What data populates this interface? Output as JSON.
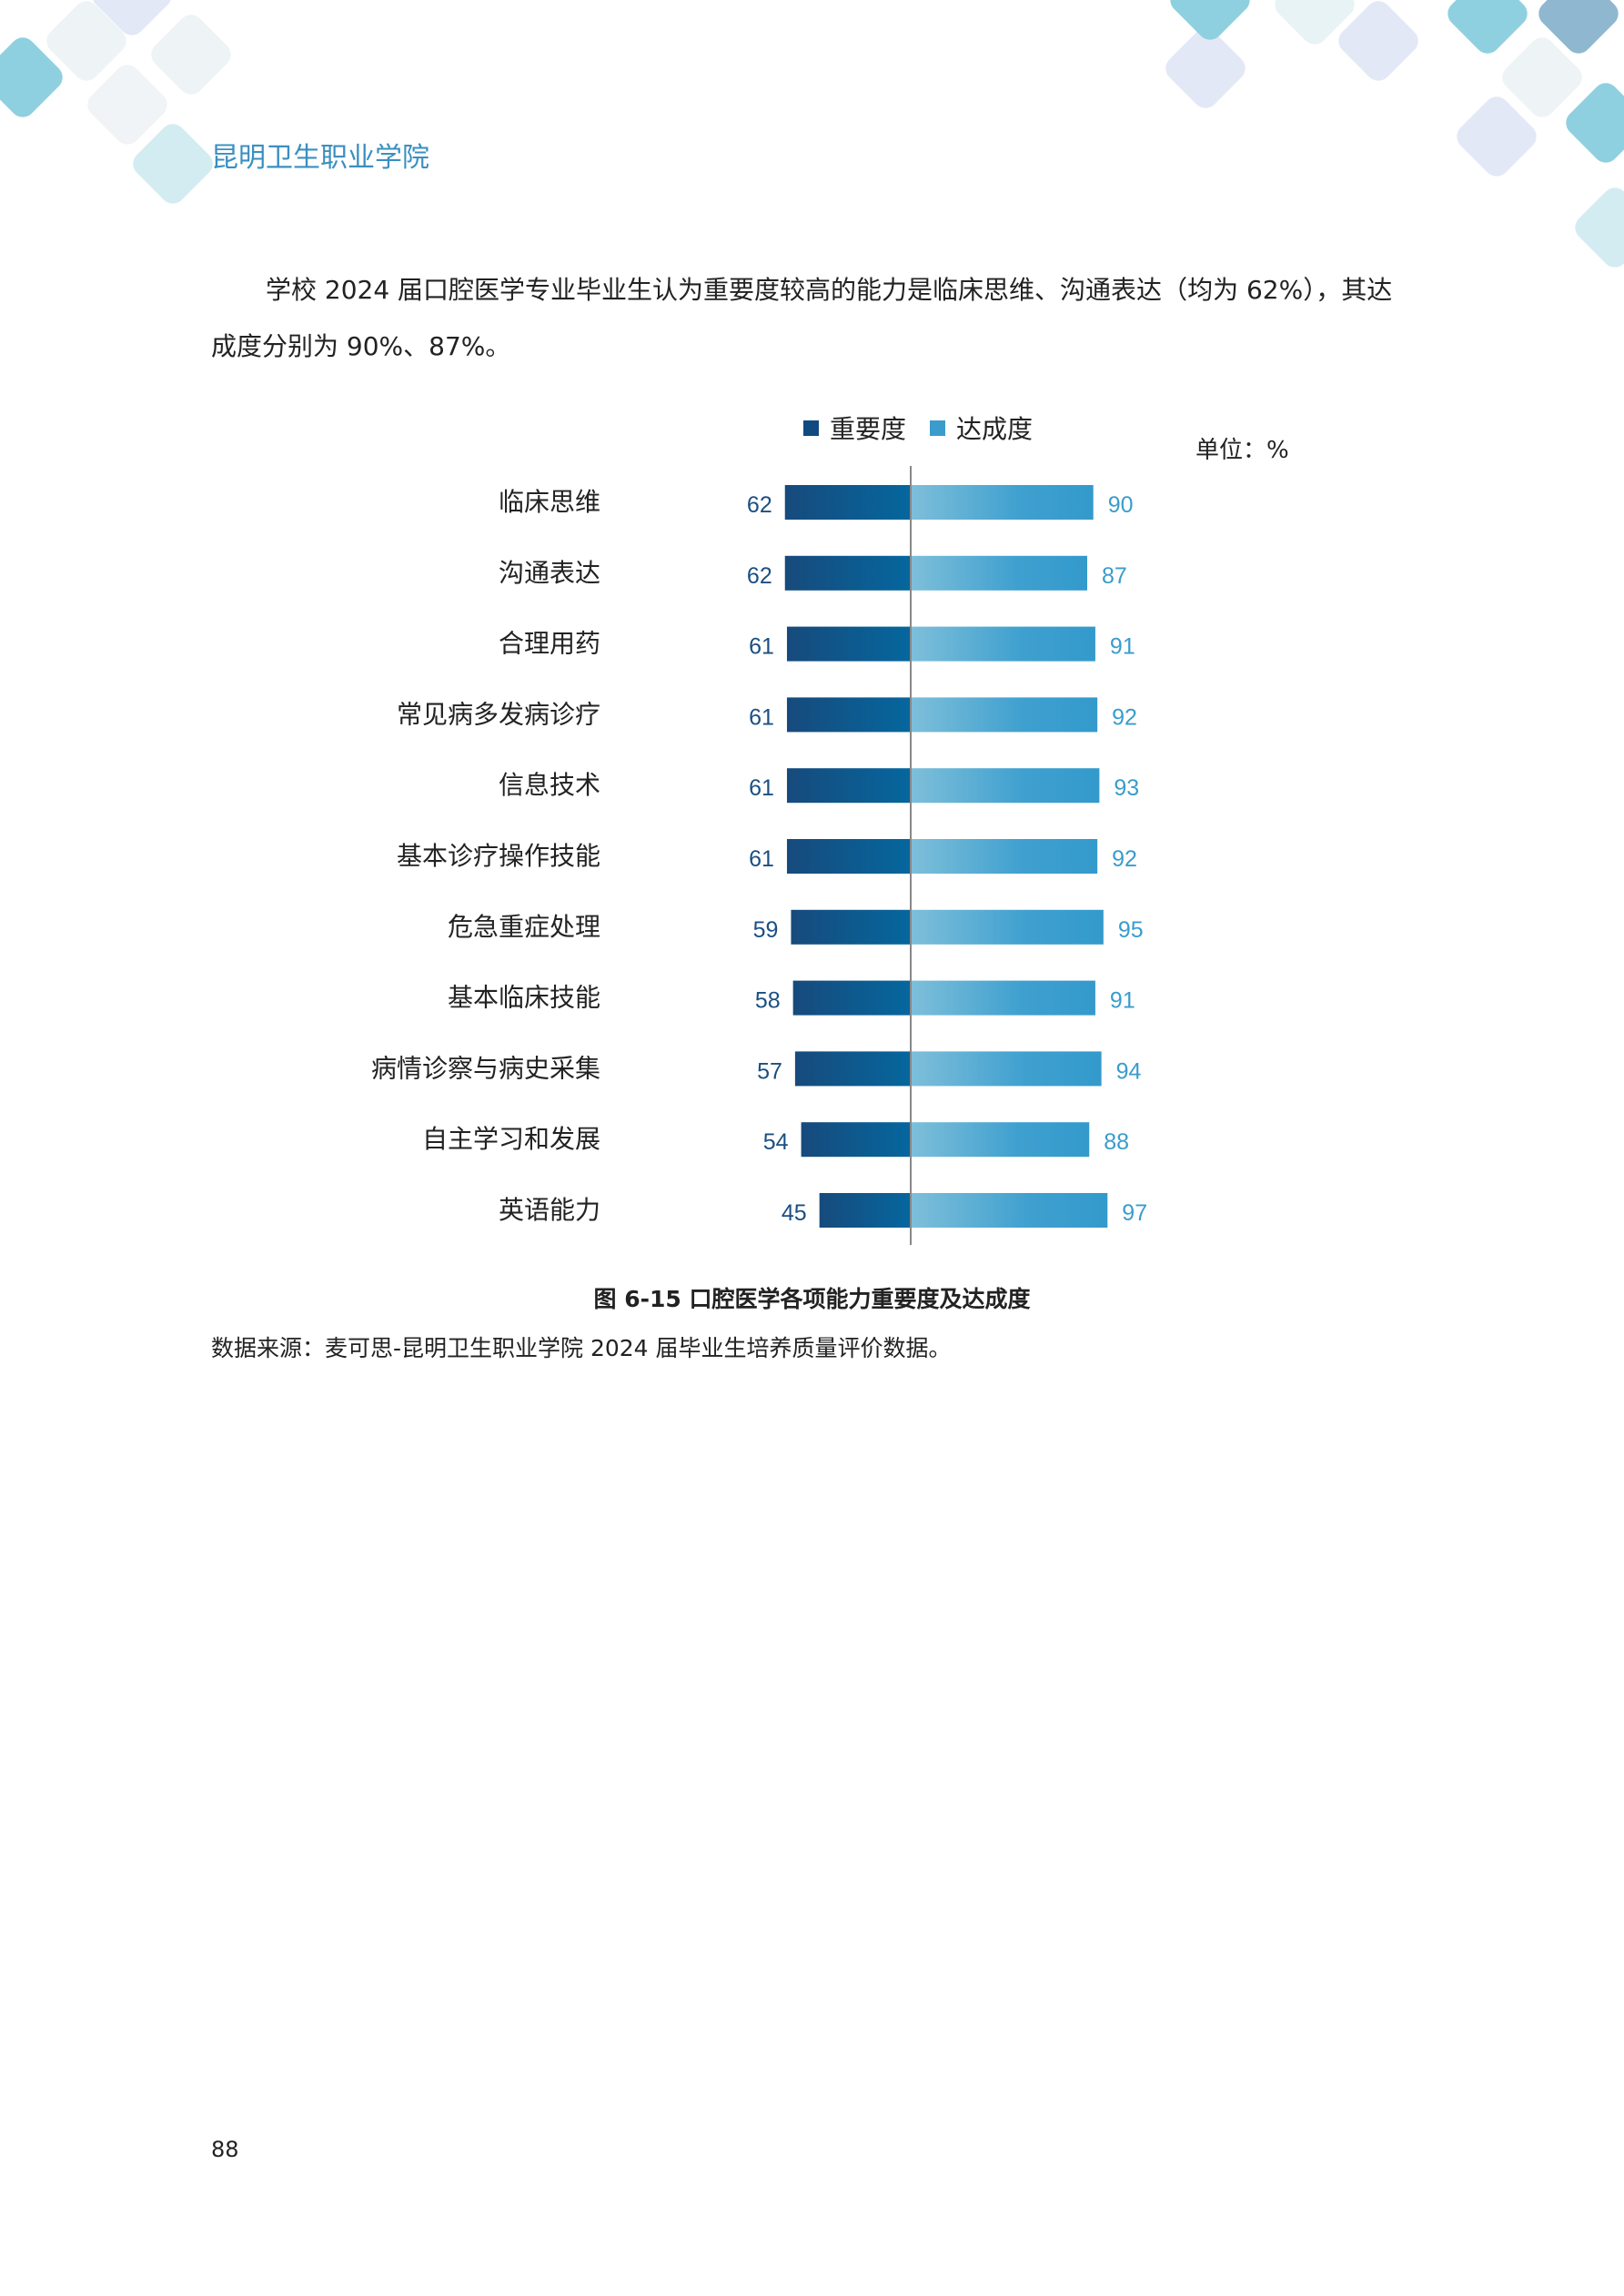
{
  "header": {
    "school_name": "昆明卫生职业学院"
  },
  "body_text": "学校 2024 届口腔医学专业毕业生认为重要度较高的能力是临床思维、沟通表达（均为 62%），其达成度分别为 90%、87%。",
  "chart_data": {
    "type": "bar",
    "orientation": "horizontal-diverging",
    "unit_label": "单位：%",
    "categories": [
      "临床思维",
      "沟通表达",
      "合理用药",
      "常见病多发病诊疗",
      "信息技术",
      "基本诊疗操作技能",
      "危急重症处理",
      "基本临床技能",
      "病情诊察与病史采集",
      "自主学习和发展",
      "英语能力"
    ],
    "series": [
      {
        "name": "重要度",
        "color": "#0f4a80",
        "values": [
          62,
          62,
          61,
          61,
          61,
          61,
          59,
          58,
          57,
          54,
          45
        ]
      },
      {
        "name": "达成度",
        "color": "#3a9ccc",
        "values": [
          90,
          87,
          91,
          92,
          93,
          92,
          95,
          91,
          94,
          88,
          97
        ]
      }
    ],
    "legend": "top",
    "grid": false
  },
  "caption": "图 6-15    口腔医学各项能力重要度及达成度",
  "source": "数据来源：麦可思-昆明卫生职业学院 2024 届毕业生培养质量评价数据。",
  "page_number": "88"
}
